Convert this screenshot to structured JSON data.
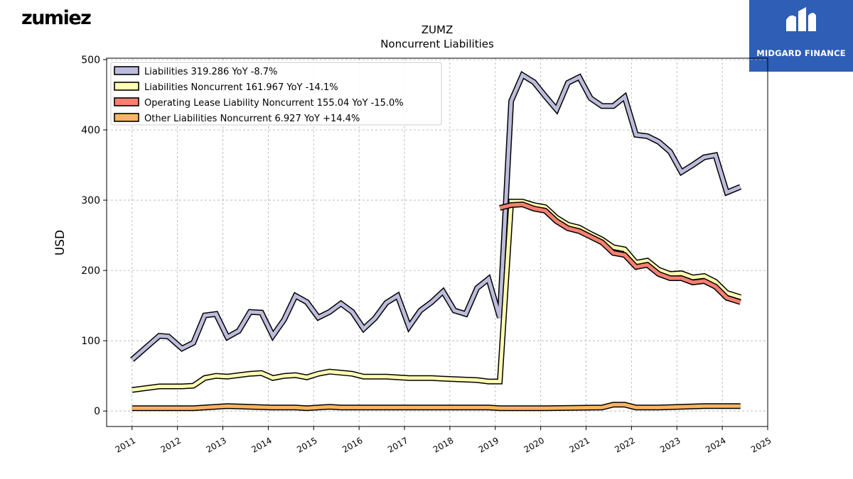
{
  "brand": {
    "logo_text": "zumiez",
    "partner_logo_text": "MIDGARD FINANCE"
  },
  "colors": {
    "liabilities": "#bcbddc",
    "noncurrent": "#ffffb3",
    "lease": "#fb8072",
    "other": "#fdb462",
    "outline": "#000000",
    "partner_bg": "#2f5eb6"
  },
  "chart_data": {
    "type": "line",
    "title": "ZUMZ",
    "subtitle": "Noncurrent  Liabilities",
    "xlabel": "",
    "ylabel": "USD",
    "xlim": [
      2010.44,
      2025.0
    ],
    "ylim": [
      -22,
      502
    ],
    "yticks": [
      0,
      100,
      200,
      300,
      400,
      500
    ],
    "xticks": [
      "2011",
      "2012",
      "2013",
      "2014",
      "2015",
      "2016",
      "2017",
      "2018",
      "2019",
      "2020",
      "2021",
      "2022",
      "2023",
      "2024",
      "2025"
    ],
    "grid": true,
    "legend_position": "top-left",
    "series": [
      {
        "name": "Liabilities  319.286 YoY -8.7%",
        "color_key": "liabilities",
        "points": [
          [
            2011.0,
            73
          ],
          [
            2011.6,
            107
          ],
          [
            2011.8,
            106
          ],
          [
            2012.1,
            89
          ],
          [
            2012.35,
            97
          ],
          [
            2012.6,
            136
          ],
          [
            2012.85,
            138
          ],
          [
            2013.1,
            105
          ],
          [
            2013.35,
            114
          ],
          [
            2013.6,
            141
          ],
          [
            2013.85,
            140
          ],
          [
            2014.1,
            107
          ],
          [
            2014.35,
            130
          ],
          [
            2014.6,
            164
          ],
          [
            2014.85,
            155
          ],
          [
            2015.1,
            133
          ],
          [
            2015.35,
            141
          ],
          [
            2015.6,
            153
          ],
          [
            2015.85,
            141
          ],
          [
            2016.1,
            117
          ],
          [
            2016.35,
            132
          ],
          [
            2016.6,
            154
          ],
          [
            2016.85,
            164
          ],
          [
            2017.1,
            120
          ],
          [
            2017.35,
            143
          ],
          [
            2017.6,
            155
          ],
          [
            2017.85,
            170
          ],
          [
            2018.1,
            143
          ],
          [
            2018.35,
            138
          ],
          [
            2018.6,
            175
          ],
          [
            2018.85,
            188
          ],
          [
            2019.1,
            133
          ],
          [
            2019.35,
            441
          ],
          [
            2019.6,
            478
          ],
          [
            2019.85,
            468
          ],
          [
            2020.1,
            448
          ],
          [
            2020.35,
            429
          ],
          [
            2020.6,
            467
          ],
          [
            2020.85,
            475
          ],
          [
            2021.1,
            445
          ],
          [
            2021.35,
            434
          ],
          [
            2021.6,
            434
          ],
          [
            2021.85,
            447
          ],
          [
            2022.1,
            393
          ],
          [
            2022.35,
            391
          ],
          [
            2022.6,
            383
          ],
          [
            2022.85,
            369
          ],
          [
            2023.1,
            340
          ],
          [
            2023.35,
            350
          ],
          [
            2023.6,
            361
          ],
          [
            2023.85,
            364
          ],
          [
            2024.1,
            311
          ],
          [
            2024.4,
            319
          ]
        ]
      },
      {
        "name": "Liabilities Noncurrent  161.967 YoY -14.1%",
        "color_key": "noncurrent",
        "points": [
          [
            2011.0,
            30
          ],
          [
            2011.6,
            35
          ],
          [
            2012.1,
            35
          ],
          [
            2012.35,
            36
          ],
          [
            2012.6,
            47
          ],
          [
            2012.85,
            50
          ],
          [
            2013.1,
            49
          ],
          [
            2013.6,
            53
          ],
          [
            2013.85,
            54
          ],
          [
            2014.1,
            47
          ],
          [
            2014.35,
            50
          ],
          [
            2014.6,
            51
          ],
          [
            2014.85,
            48
          ],
          [
            2015.1,
            53
          ],
          [
            2015.35,
            56
          ],
          [
            2015.85,
            53
          ],
          [
            2016.1,
            49
          ],
          [
            2016.6,
            49
          ],
          [
            2017.1,
            47
          ],
          [
            2017.6,
            47
          ],
          [
            2017.85,
            46
          ],
          [
            2018.6,
            44
          ],
          [
            2018.85,
            42
          ],
          [
            2019.1,
            42
          ],
          [
            2019.35,
            298
          ],
          [
            2019.6,
            298
          ],
          [
            2019.85,
            293
          ],
          [
            2020.1,
            290
          ],
          [
            2020.35,
            275
          ],
          [
            2020.6,
            265
          ],
          [
            2020.85,
            261
          ],
          [
            2021.1,
            252
          ],
          [
            2021.35,
            244
          ],
          [
            2021.6,
            233
          ],
          [
            2021.85,
            230
          ],
          [
            2022.1,
            211
          ],
          [
            2022.35,
            214
          ],
          [
            2022.6,
            201
          ],
          [
            2022.85,
            195
          ],
          [
            2023.1,
            196
          ],
          [
            2023.35,
            190
          ],
          [
            2023.6,
            192
          ],
          [
            2023.85,
            184
          ],
          [
            2024.1,
            168
          ],
          [
            2024.4,
            162
          ]
        ]
      },
      {
        "name": "Operating Lease Liability Noncurrent  155.04 YoY -15.0%",
        "color_key": "lease",
        "points": [
          [
            2019.1,
            289
          ],
          [
            2019.35,
            293
          ],
          [
            2019.6,
            294
          ],
          [
            2019.85,
            288
          ],
          [
            2020.1,
            285
          ],
          [
            2020.35,
            270
          ],
          [
            2020.6,
            260
          ],
          [
            2020.85,
            256
          ],
          [
            2021.1,
            248
          ],
          [
            2021.35,
            240
          ],
          [
            2021.6,
            225
          ],
          [
            2021.85,
            222
          ],
          [
            2022.1,
            205
          ],
          [
            2022.35,
            208
          ],
          [
            2022.6,
            195
          ],
          [
            2022.85,
            189
          ],
          [
            2023.1,
            189
          ],
          [
            2023.35,
            183
          ],
          [
            2023.6,
            185
          ],
          [
            2023.85,
            177
          ],
          [
            2024.1,
            161
          ],
          [
            2024.4,
            155
          ]
        ]
      },
      {
        "name": "Other Liabilities Noncurrent  6.927 YoY +14.4%",
        "color_key": "other",
        "points": [
          [
            2011.0,
            4
          ],
          [
            2011.6,
            4
          ],
          [
            2012.35,
            4
          ],
          [
            2012.85,
            6
          ],
          [
            2013.1,
            7
          ],
          [
            2013.6,
            6
          ],
          [
            2014.1,
            5
          ],
          [
            2014.6,
            5
          ],
          [
            2014.85,
            4
          ],
          [
            2015.1,
            5
          ],
          [
            2015.35,
            6
          ],
          [
            2015.6,
            5
          ],
          [
            2016.1,
            5
          ],
          [
            2017.1,
            5
          ],
          [
            2018.35,
            5
          ],
          [
            2018.85,
            5
          ],
          [
            2019.1,
            4
          ],
          [
            2020.1,
            4
          ],
          [
            2021.35,
            5
          ],
          [
            2021.6,
            9
          ],
          [
            2021.85,
            9
          ],
          [
            2022.1,
            5
          ],
          [
            2022.6,
            5
          ],
          [
            2023.1,
            6
          ],
          [
            2023.6,
            7
          ],
          [
            2024.1,
            7
          ],
          [
            2024.4,
            7
          ]
        ]
      }
    ]
  }
}
